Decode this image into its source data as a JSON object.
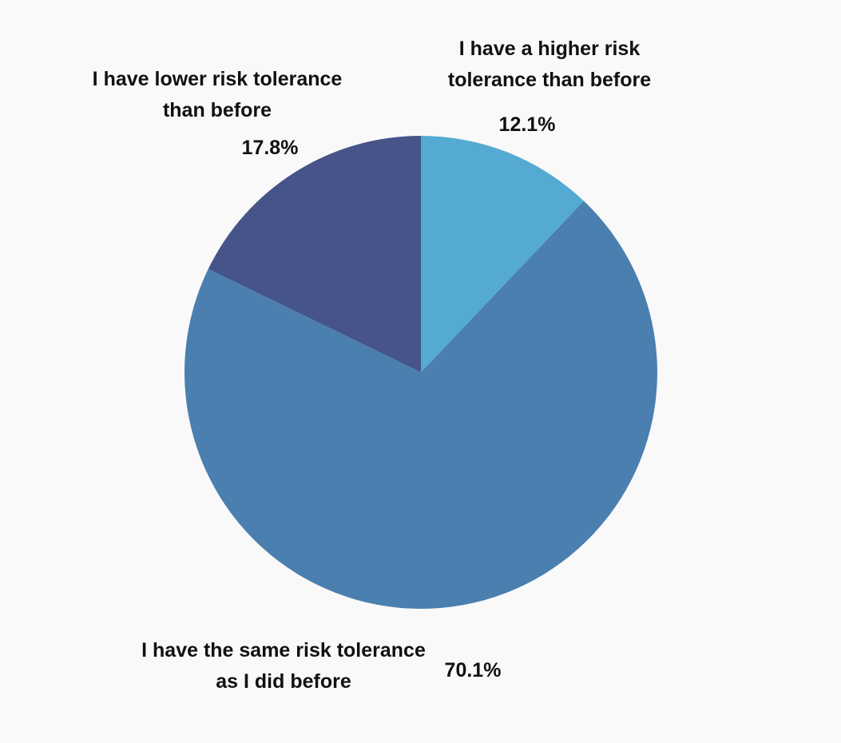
{
  "chart_data": {
    "type": "pie",
    "categories": [
      "I have a higher risk tolerance than before",
      "I have the same risk tolerance as I did before",
      "I have lower risk tolerance than before"
    ],
    "values": [
      12.1,
      70.1,
      17.8
    ],
    "value_labels": [
      "12.1%",
      "70.1%",
      "17.8%"
    ],
    "colors": [
      "#55aad3",
      "#4a7fb0",
      "#46548a"
    ]
  }
}
